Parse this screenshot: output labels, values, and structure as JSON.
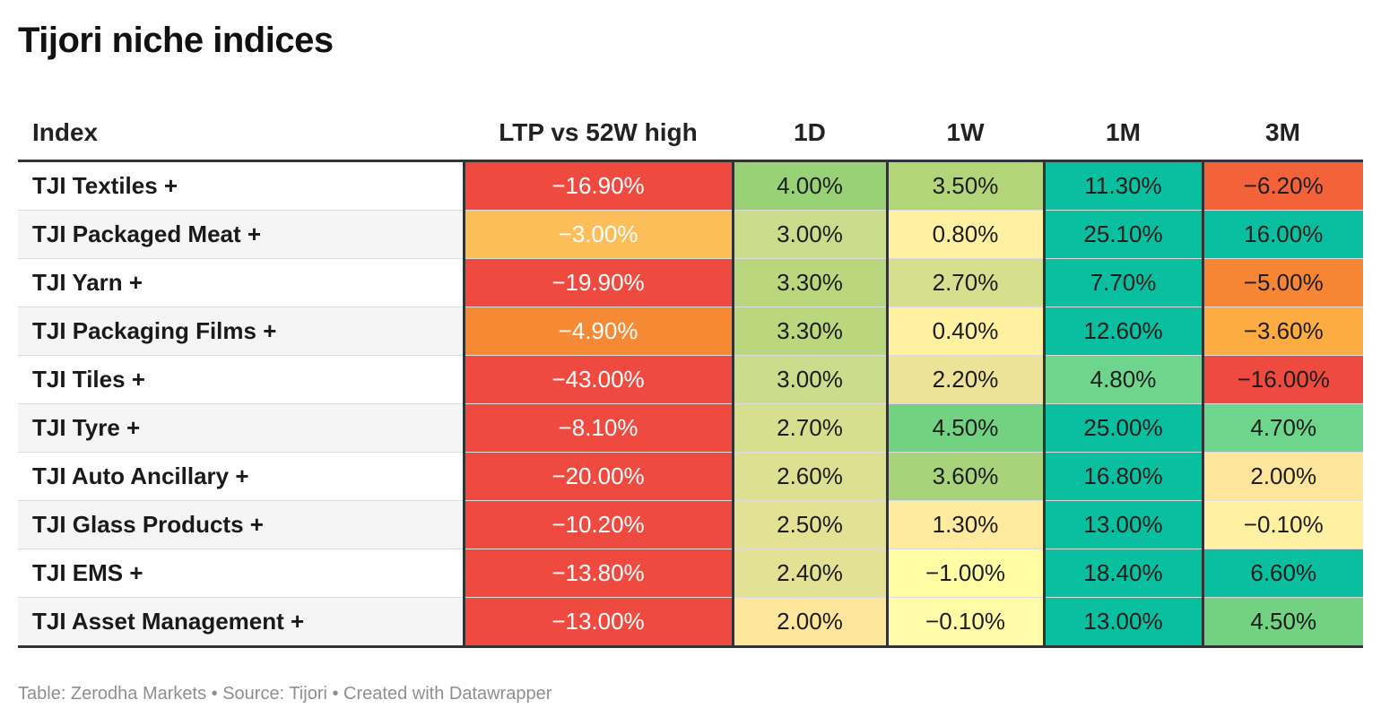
{
  "title": "Tijori niche indices",
  "chart_data": {
    "type": "table",
    "title": "Tijori niche indices",
    "columns": [
      "Index",
      "LTP vs 52W high",
      "1D",
      "1W",
      "1M",
      "3M"
    ],
    "rows": [
      {
        "name": "TJI Textiles +",
        "values": [
          "−16.90%",
          "4.00%",
          "3.50%",
          "11.30%",
          "−6.20%"
        ],
        "numeric": [
          -16.9,
          4.0,
          3.5,
          11.3,
          -6.2
        ],
        "colors": [
          "#ee4a3f",
          "#99d276",
          "#b2d57a",
          "#0abf9f",
          "#f4623a"
        ]
      },
      {
        "name": "TJI Packaged Meat +",
        "values": [
          "−3.00%",
          "3.00%",
          "0.80%",
          "25.10%",
          "16.00%"
        ],
        "numeric": [
          -3.0,
          3.0,
          0.8,
          25.1,
          16.0
        ],
        "colors": [
          "#fcbe59",
          "#cbdc8c",
          "#fff1a1",
          "#0abf9f",
          "#0abf9f"
        ]
      },
      {
        "name": "TJI Yarn +",
        "values": [
          "−19.90%",
          "3.30%",
          "2.70%",
          "7.70%",
          "−5.00%"
        ],
        "numeric": [
          -19.9,
          3.3,
          2.7,
          7.7,
          -5.0
        ],
        "colors": [
          "#ee4a3f",
          "#bad77e",
          "#d5df8d",
          "#0abf9f",
          "#f68634"
        ]
      },
      {
        "name": "TJI Packaging Films +",
        "values": [
          "−4.90%",
          "3.30%",
          "0.40%",
          "12.60%",
          "−3.60%"
        ],
        "numeric": [
          -4.9,
          3.3,
          0.4,
          12.6,
          -3.6
        ],
        "colors": [
          "#f68934",
          "#bad77e",
          "#fff1a0",
          "#0abf9f",
          "#fcac40"
        ]
      },
      {
        "name": "TJI Tiles +",
        "values": [
          "−43.00%",
          "3.00%",
          "2.20%",
          "4.80%",
          "−16.00%"
        ],
        "numeric": [
          -43.0,
          3.0,
          2.2,
          4.8,
          -16.0
        ],
        "colors": [
          "#ee4a3f",
          "#cbdc8c",
          "#ece399",
          "#6dd58c",
          "#ee4a3f"
        ]
      },
      {
        "name": "TJI Tyre +",
        "values": [
          "−8.10%",
          "2.70%",
          "4.50%",
          "25.00%",
          "4.70%"
        ],
        "numeric": [
          -8.1,
          2.7,
          4.5,
          25.0,
          4.7
        ],
        "colors": [
          "#ee4a3f",
          "#d5df8d",
          "#72d282",
          "#0abf9f",
          "#6dd58c"
        ]
      },
      {
        "name": "TJI Auto Ancillary +",
        "values": [
          "−20.00%",
          "2.60%",
          "3.60%",
          "16.80%",
          "2.00%"
        ],
        "numeric": [
          -20.0,
          2.6,
          3.6,
          16.8,
          2.0
        ],
        "colors": [
          "#ee4a3f",
          "#dde090",
          "#a8d37a",
          "#0abf9f",
          "#fde59b"
        ]
      },
      {
        "name": "TJI Glass Products +",
        "values": [
          "−10.20%",
          "2.50%",
          "1.30%",
          "13.00%",
          "−0.10%"
        ],
        "numeric": [
          -10.2,
          2.5,
          1.3,
          13.0,
          -0.1
        ],
        "colors": [
          "#ee4a3f",
          "#e2e194",
          "#ffeaa0",
          "#0abf9f",
          "#fff1a1"
        ]
      },
      {
        "name": "TJI EMS +",
        "values": [
          "−13.80%",
          "2.40%",
          "−1.00%",
          "18.40%",
          "6.60%"
        ],
        "numeric": [
          -13.8,
          2.4,
          -1.0,
          18.4,
          6.6
        ],
        "colors": [
          "#ee4a3f",
          "#e2e194",
          "#fffca4",
          "#0abf9f",
          "#0abf9f"
        ]
      },
      {
        "name": "TJI Asset Management +",
        "values": [
          "−13.00%",
          "2.00%",
          "−0.10%",
          "13.00%",
          "4.50%"
        ],
        "numeric": [
          -13.0,
          2.0,
          -0.1,
          13.0,
          4.5
        ],
        "colors": [
          "#ee4a3f",
          "#fde59b",
          "#fffba6",
          "#0abf9f",
          "#72d282"
        ]
      }
    ]
  },
  "footer": "Table: Zerodha Markets • Source: Tijori • Created with Datawrapper"
}
